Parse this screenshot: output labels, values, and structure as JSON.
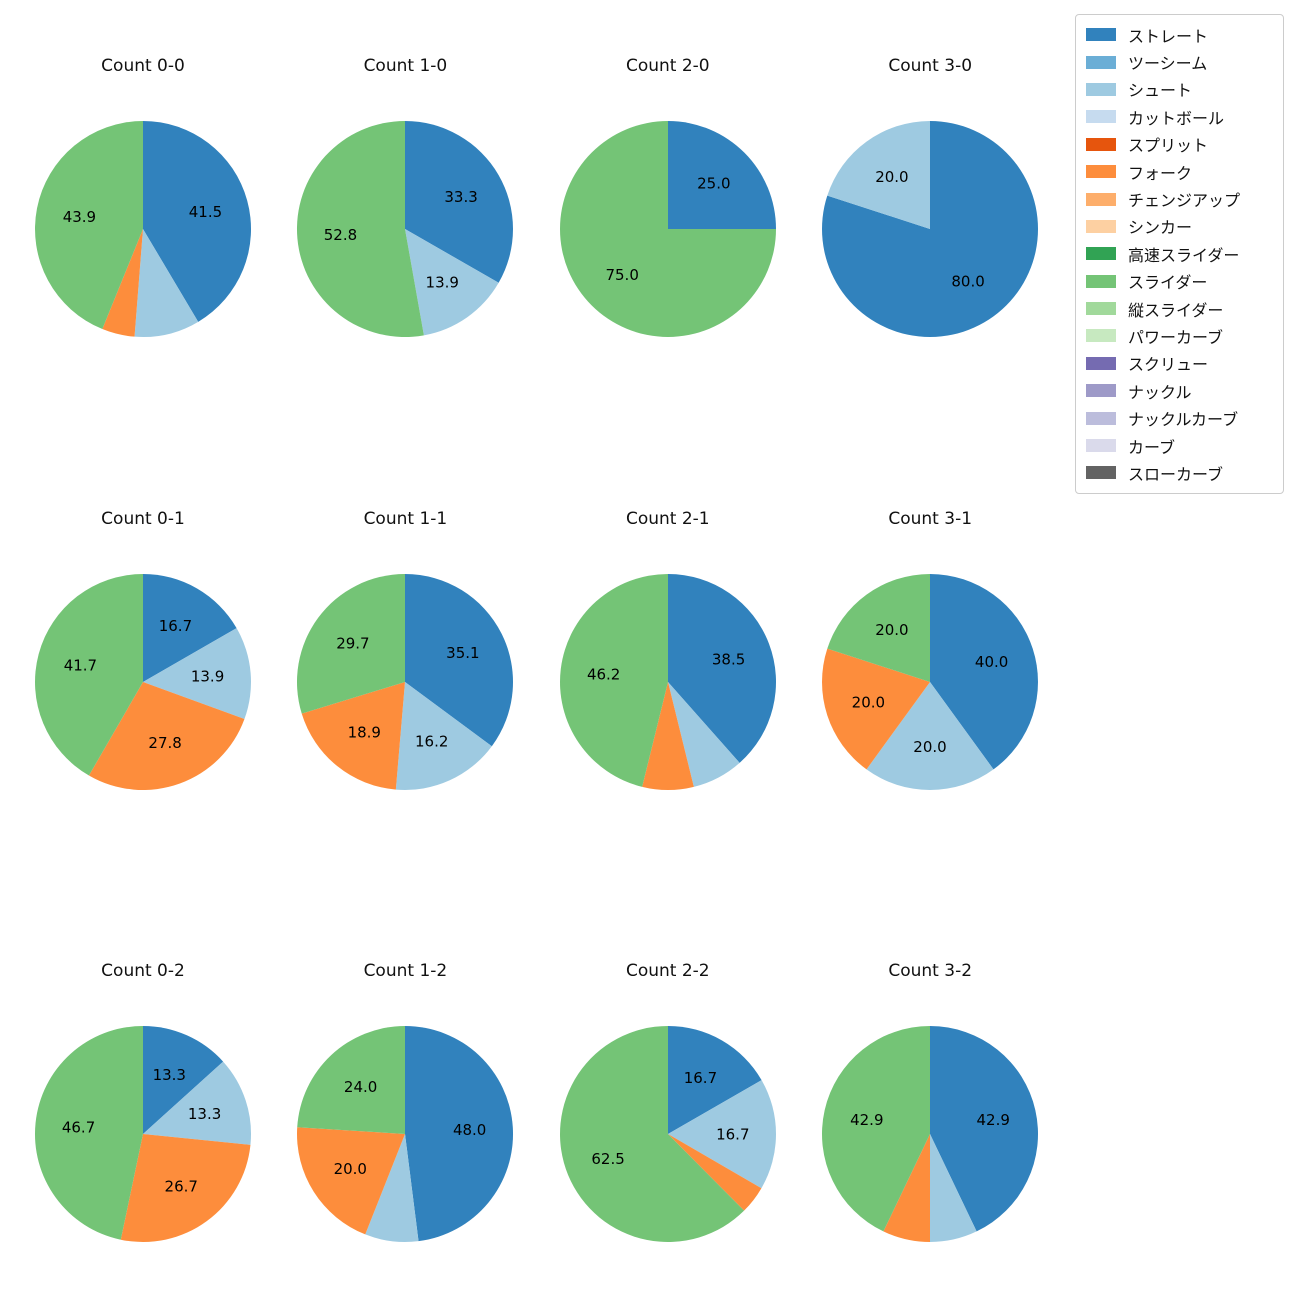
{
  "figure": {
    "background_color": "#ffffff"
  },
  "legend": {
    "items": [
      {
        "label": "ストレート",
        "color": "#3182bd"
      },
      {
        "label": "ツーシーム",
        "color": "#6baed6"
      },
      {
        "label": "シュート",
        "color": "#9ecae1"
      },
      {
        "label": "カットボール",
        "color": "#c6dbef"
      },
      {
        "label": "スプリット",
        "color": "#e6550d"
      },
      {
        "label": "フォーク",
        "color": "#fd8d3c"
      },
      {
        "label": "チェンジアップ",
        "color": "#fdae6b"
      },
      {
        "label": "シンカー",
        "color": "#fdd0a2"
      },
      {
        "label": "高速スライダー",
        "color": "#31a354"
      },
      {
        "label": "スライダー",
        "color": "#74c476"
      },
      {
        "label": "縦スライダー",
        "color": "#a1d99b"
      },
      {
        "label": "パワーカーブ",
        "color": "#c7e9c0"
      },
      {
        "label": "スクリュー",
        "color": "#756bb1"
      },
      {
        "label": "ナックル",
        "color": "#9e9ac8"
      },
      {
        "label": "ナックルカーブ",
        "color": "#bcbddc"
      },
      {
        "label": "カーブ",
        "color": "#dadaeb"
      },
      {
        "label": "スローカーブ",
        "color": "#636363"
      }
    ]
  },
  "chart_data": {
    "type": "pie",
    "layout": {
      "rows": 3,
      "cols": 4,
      "direction": "clockwise",
      "start_angle_deg_from_top": 0,
      "label_threshold_pct": 10,
      "label_radius_frac": 0.6,
      "grid": false,
      "legend_position": "upper right"
    },
    "charts": [
      {
        "title": "Count 0-0",
        "slices": [
          {
            "label": "ストレート",
            "value": 41.5
          },
          {
            "label": "シュート",
            "value": 9.8
          },
          {
            "label": "フォーク",
            "value": 4.9
          },
          {
            "label": "スライダー",
            "value": 43.9
          }
        ]
      },
      {
        "title": "Count 1-0",
        "slices": [
          {
            "label": "ストレート",
            "value": 33.3
          },
          {
            "label": "シュート",
            "value": 13.9
          },
          {
            "label": "スライダー",
            "value": 52.8
          }
        ]
      },
      {
        "title": "Count 2-0",
        "slices": [
          {
            "label": "ストレート",
            "value": 25.0
          },
          {
            "label": "スライダー",
            "value": 75.0
          }
        ]
      },
      {
        "title": "Count 3-0",
        "slices": [
          {
            "label": "ストレート",
            "value": 80.0
          },
          {
            "label": "シュート",
            "value": 20.0
          }
        ]
      },
      {
        "title": "Count 0-1",
        "slices": [
          {
            "label": "ストレート",
            "value": 16.7
          },
          {
            "label": "シュート",
            "value": 13.9
          },
          {
            "label": "フォーク",
            "value": 27.8
          },
          {
            "label": "スライダー",
            "value": 41.7
          }
        ]
      },
      {
        "title": "Count 1-1",
        "slices": [
          {
            "label": "ストレート",
            "value": 35.1
          },
          {
            "label": "シュート",
            "value": 16.2
          },
          {
            "label": "フォーク",
            "value": 18.9
          },
          {
            "label": "スライダー",
            "value": 29.7
          }
        ]
      },
      {
        "title": "Count 2-1",
        "slices": [
          {
            "label": "ストレート",
            "value": 38.5
          },
          {
            "label": "シュート",
            "value": 7.7
          },
          {
            "label": "フォーク",
            "value": 7.7
          },
          {
            "label": "スライダー",
            "value": 46.2
          }
        ]
      },
      {
        "title": "Count 3-1",
        "slices": [
          {
            "label": "ストレート",
            "value": 40.0
          },
          {
            "label": "シュート",
            "value": 20.0
          },
          {
            "label": "フォーク",
            "value": 20.0
          },
          {
            "label": "スライダー",
            "value": 20.0
          }
        ]
      },
      {
        "title": "Count 0-2",
        "slices": [
          {
            "label": "ストレート",
            "value": 13.3
          },
          {
            "label": "シュート",
            "value": 13.3
          },
          {
            "label": "フォーク",
            "value": 26.7
          },
          {
            "label": "スライダー",
            "value": 46.7
          }
        ]
      },
      {
        "title": "Count 1-2",
        "slices": [
          {
            "label": "ストレート",
            "value": 48.0
          },
          {
            "label": "シュート",
            "value": 8.0
          },
          {
            "label": "フォーク",
            "value": 20.0
          },
          {
            "label": "スライダー",
            "value": 24.0
          }
        ]
      },
      {
        "title": "Count 2-2",
        "slices": [
          {
            "label": "ストレート",
            "value": 16.7
          },
          {
            "label": "シュート",
            "value": 16.7
          },
          {
            "label": "フォーク",
            "value": 4.2
          },
          {
            "label": "スライダー",
            "value": 62.5
          }
        ]
      },
      {
        "title": "Count 3-2",
        "slices": [
          {
            "label": "ストレート",
            "value": 42.9
          },
          {
            "label": "シュート",
            "value": 7.1
          },
          {
            "label": "フォーク",
            "value": 7.1
          },
          {
            "label": "スライダー",
            "value": 42.9
          }
        ]
      }
    ]
  }
}
